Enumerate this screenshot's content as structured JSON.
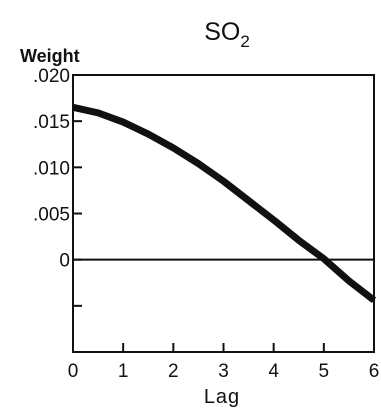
{
  "chart_data": {
    "type": "line",
    "title": "SO",
    "title_subscript": "2",
    "xlabel": "Lag",
    "ylabel": "Weight",
    "xlim": [
      0,
      6
    ],
    "ylim": [
      -0.01,
      0.02
    ],
    "x_ticks": [
      0,
      1,
      2,
      3,
      4,
      5,
      6
    ],
    "x_tick_labels": [
      "0",
      "1",
      "2",
      "3",
      "4",
      "5",
      "6"
    ],
    "y_ticks": [
      0.02,
      0.015,
      0.01,
      0.005,
      0,
      -0.005
    ],
    "y_tick_labels": [
      ".020",
      ".015",
      ".010",
      ".005",
      "0",
      ""
    ],
    "reference_line_y": 0,
    "grid": false,
    "series": [
      {
        "x": [
          0,
          0.5,
          1,
          1.5,
          2,
          2.5,
          3,
          3.5,
          4,
          4.5,
          5,
          5.5,
          6
        ],
        "y": [
          0.0165,
          0.0159,
          0.0149,
          0.0136,
          0.0121,
          0.0104,
          0.0085,
          0.0064,
          0.0043,
          0.0021,
          0.0001,
          -0.0023,
          -0.0044
        ]
      }
    ]
  }
}
